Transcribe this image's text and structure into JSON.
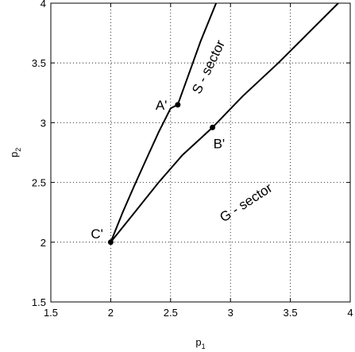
{
  "chart_data": {
    "type": "line",
    "xlabel": {
      "main": "p",
      "sub": "1"
    },
    "ylabel": {
      "main": "p",
      "sub": "2"
    },
    "xlim": [
      1.5,
      4
    ],
    "ylim": [
      1.5,
      4
    ],
    "xticks": [
      "1.5",
      "2",
      "2.5",
      "3",
      "3.5",
      "4"
    ],
    "yticks": [
      "1.5",
      "2",
      "2.5",
      "3",
      "3.5",
      "4"
    ],
    "grid": true,
    "series": [
      {
        "x": [
          2.0,
          2.1,
          2.2,
          2.3,
          2.4,
          2.5,
          2.56,
          2.65,
          2.75,
          2.88
        ],
        "y": [
          2.0,
          2.25,
          2.48,
          2.7,
          2.92,
          3.12,
          3.15,
          3.4,
          3.68,
          4.0
        ]
      },
      {
        "x": [
          2.0,
          2.2,
          2.4,
          2.6,
          2.85,
          3.1,
          3.4,
          3.65,
          3.9
        ],
        "y": [
          2.0,
          2.25,
          2.5,
          2.73,
          2.96,
          3.22,
          3.5,
          3.75,
          4.0
        ]
      }
    ],
    "points": [
      {
        "label": "A'",
        "x": 2.56,
        "y": 3.15
      },
      {
        "label": "B'",
        "x": 2.85,
        "y": 2.96
      },
      {
        "label": "C'",
        "x": 2.0,
        "y": 2.0
      }
    ],
    "annotations": [
      {
        "text": "S - sector",
        "x": 2.85,
        "y": 3.45
      },
      {
        "text": "G - sector",
        "x": 3.15,
        "y": 2.3
      }
    ]
  }
}
